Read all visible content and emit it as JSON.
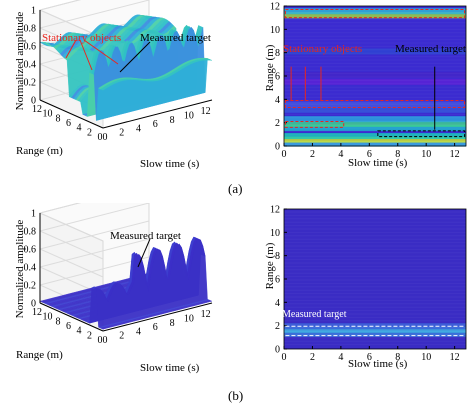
{
  "figure": {
    "panel_a_label": "(a)",
    "panel_b_label": "(b)"
  },
  "chart_data": [
    {
      "id": "a-3d",
      "type": "surface",
      "zlabel": "Normalized amplitude",
      "xlabel": "Range (m)",
      "ylabel": "Slow time (s)",
      "z_ticks": [
        "0",
        "0.2",
        "0.4",
        "0.6",
        "0.8",
        "1"
      ],
      "range_ticks": [
        "12",
        "10",
        "8",
        "6",
        "4",
        "2",
        "0"
      ],
      "time_ticks": [
        "0",
        "2",
        "4",
        "6",
        "8",
        "10",
        "12"
      ],
      "annotations": [
        "Stationary objects",
        "Measured target"
      ],
      "annotation_colors": [
        "#e8261f",
        "#000000"
      ]
    },
    {
      "id": "a-2d",
      "type": "heatmap",
      "xlabel": "Slow time (s)",
      "ylabel": "Range (m)",
      "xlim": [
        0,
        12.8
      ],
      "ylim": [
        0,
        12
      ],
      "x_ticks": [
        0,
        2,
        4,
        6,
        8,
        10,
        12
      ],
      "y_ticks": [
        0,
        2,
        4,
        6,
        8,
        10,
        12
      ],
      "bands": [
        {
          "range": 0.2,
          "color": "#38aee0"
        },
        {
          "range": 0.55,
          "color": "#cfe32a"
        },
        {
          "range": 0.85,
          "color": "#18c7b8"
        },
        {
          "range": 1.55,
          "color": "#1fb5d0"
        },
        {
          "range": 1.9,
          "color": "#3fd18c"
        },
        {
          "range": 2.3,
          "color": "#29a2dd"
        },
        {
          "range": 3.1,
          "color": "#3554d9"
        },
        {
          "range": 3.55,
          "color": "#4455e0"
        },
        {
          "range": 5.5,
          "color": "#5c22d6"
        },
        {
          "range": 6.1,
          "color": "#4426c8"
        },
        {
          "range": 8.1,
          "color": "#2e44d2"
        },
        {
          "range": 11.2,
          "color": "#9cd23a"
        },
        {
          "range": 11.55,
          "color": "#2fb5d6"
        }
      ],
      "annotations": [
        "Stationary objects",
        "Measured target"
      ],
      "annotation_colors": [
        "#e8261f",
        "#000000"
      ]
    },
    {
      "id": "b-3d",
      "type": "surface",
      "zlabel": "Normalized amplitude",
      "xlabel": "Range (m)",
      "ylabel": "Slow time (s)",
      "z_ticks": [
        "0",
        "0.2",
        "0.4",
        "0.6",
        "0.8",
        "1"
      ],
      "range_ticks": [
        "12",
        "10",
        "8",
        "6",
        "4",
        "2",
        "0"
      ],
      "time_ticks": [
        "0",
        "2",
        "4",
        "6",
        "8",
        "10",
        "12"
      ],
      "annotations": [
        "Measured target"
      ],
      "annotation_colors": [
        "#000000"
      ]
    },
    {
      "id": "b-2d",
      "type": "heatmap",
      "xlabel": "Slow time (s)",
      "ylabel": "Range (m)",
      "xlim": [
        0,
        12.8
      ],
      "ylim": [
        0,
        12
      ],
      "x_ticks": [
        0,
        2,
        4,
        6,
        8,
        10,
        12
      ],
      "y_ticks": [
        0,
        2,
        4,
        6,
        8,
        10,
        12
      ],
      "bands": [
        {
          "range": 1.3,
          "color": "#3a79dd"
        },
        {
          "range": 1.65,
          "color": "#3fb3e2"
        },
        {
          "range": 1.95,
          "color": "#3a63db"
        }
      ],
      "annotations": [
        "Measured target"
      ],
      "annotation_colors": [
        "#ffffff"
      ]
    }
  ]
}
